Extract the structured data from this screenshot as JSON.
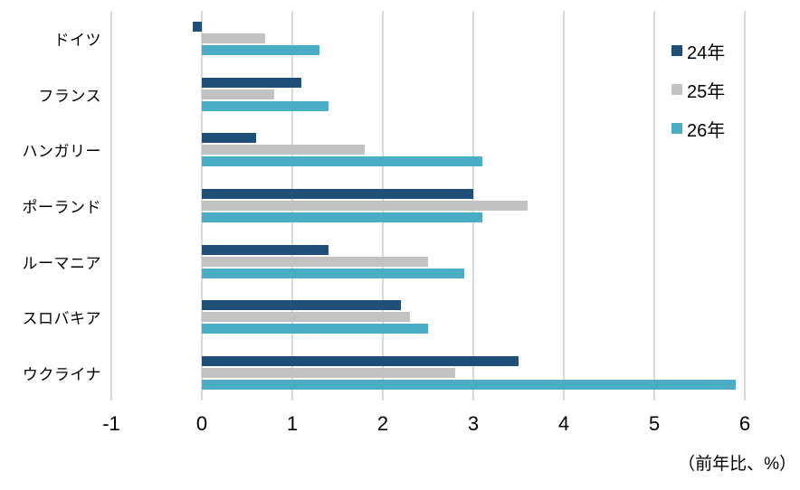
{
  "chart_data": {
    "type": "bar",
    "orientation": "horizontal",
    "title": "",
    "xlabel": "",
    "ylabel": "",
    "unit_label": "（前年比、%）",
    "categories": [
      "ドイツ",
      "フランス",
      "ハンガリー",
      "ポーランド",
      "ルーマニア",
      "スロバキア",
      "ウクライナ"
    ],
    "series": [
      {
        "name": "24年",
        "color": "#1F4E79",
        "values": [
          -0.1,
          1.1,
          0.6,
          3.0,
          1.4,
          2.2,
          3.5
        ]
      },
      {
        "name": "25年",
        "color": "#C2C2C2",
        "values": [
          0.7,
          0.8,
          1.8,
          3.6,
          2.5,
          2.3,
          2.8
        ]
      },
      {
        "name": "26年",
        "color": "#4BACC6",
        "values": [
          1.3,
          1.4,
          3.1,
          3.1,
          2.9,
          2.5,
          5.9
        ]
      }
    ],
    "x_ticks": [
      "-1",
      "0",
      "1",
      "2",
      "3",
      "4",
      "5",
      "6"
    ],
    "x_tick_values": [
      -1,
      0,
      1,
      2,
      3,
      4,
      5,
      6
    ],
    "xlim": [
      -1,
      6
    ],
    "grid": "vertical",
    "gridline_color": "#D9D9D9",
    "legend_position": "top-right"
  }
}
